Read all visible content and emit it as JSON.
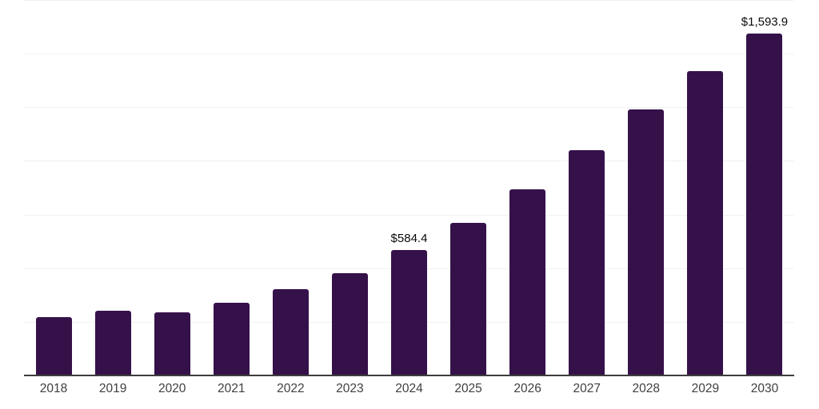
{
  "chart_data": {
    "type": "bar",
    "title": "",
    "xlabel": "",
    "ylabel": "",
    "categories": [
      "2018",
      "2019",
      "2020",
      "2021",
      "2022",
      "2023",
      "2024",
      "2025",
      "2026",
      "2027",
      "2028",
      "2029",
      "2030"
    ],
    "values": [
      273,
      303,
      294,
      339,
      401,
      478,
      584.4,
      711,
      869,
      1051,
      1241,
      1417,
      1593.9
    ],
    "annotations": [
      {
        "category": "2024",
        "text": "$584.4"
      },
      {
        "category": "2030",
        "text": "$1,593.9"
      }
    ],
    "ylim": [
      0,
      1750
    ],
    "grid": true,
    "grid_step": 250,
    "legend": false,
    "colors": {
      "bar": "#35114A",
      "gridline": "#f1f1f1",
      "axis_line": "#3d3d3d",
      "tick_label": "#3f3f3f",
      "data_label": "#0a0a0a",
      "background": "#ffffff"
    }
  }
}
